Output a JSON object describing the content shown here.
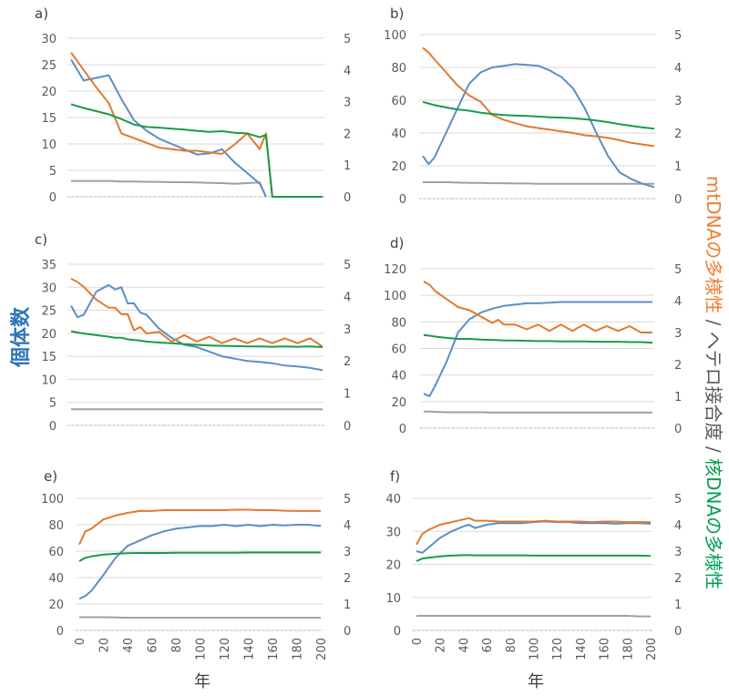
{
  "figure": {
    "left_axis_label": "個体数",
    "right_axis_label_parts": [
      {
        "text": "mtDNAの多様性",
        "color": "#ed7d31"
      },
      {
        "text": " / ヘテロ接合度 / ",
        "color": "#595959"
      },
      {
        "text": "核DNAの多様性",
        "color": "#00a050"
      }
    ],
    "x_axis_label": "年",
    "series_colors": {
      "population": "#5b8ec4",
      "mtdna": "#e07a2e",
      "heterozygosity": "#a0a0a0",
      "nuclear": "#1a9a48"
    }
  },
  "chart_data": [
    {
      "type": "line",
      "panel": "a)",
      "x": [
        0,
        10,
        20,
        30,
        40,
        50,
        60,
        70,
        80,
        90,
        100,
        110,
        120,
        130,
        140,
        150,
        155,
        160,
        170,
        180,
        190,
        200
      ],
      "xlim": [
        0,
        200
      ],
      "left_ylim": [
        0,
        30
      ],
      "left_ticks": [
        "0",
        "5",
        "10",
        "15",
        "20",
        "25",
        "30"
      ],
      "right_ylim": [
        0,
        5
      ],
      "right_ticks": [
        "0",
        "1",
        "2",
        "3",
        "4",
        "5"
      ],
      "series": [
        {
          "name": "個体数",
          "axis": "left",
          "key": "population",
          "values": [
            26,
            22,
            22.5,
            23,
            18.5,
            14.5,
            12.5,
            11,
            10,
            9,
            8,
            8.2,
            9,
            6.5,
            4.5,
            2.5,
            0,
            null,
            null,
            null,
            null,
            null
          ]
        },
        {
          "name": "mtDNAの多様性",
          "axis": "right",
          "key": "mtdna",
          "values": [
            4.55,
            4.0,
            3.45,
            2.95,
            2.0,
            1.85,
            1.7,
            1.55,
            1.5,
            1.45,
            1.45,
            1.4,
            1.35,
            1.65,
            2.0,
            1.5,
            2.0,
            0,
            0,
            0,
            0,
            0
          ]
        },
        {
          "name": "ヘテロ接合度",
          "axis": "right",
          "key": "heterozygosity",
          "values": [
            0.5,
            0.5,
            0.5,
            0.5,
            0.48,
            0.48,
            0.47,
            0.47,
            0.46,
            0.46,
            0.45,
            0.44,
            0.43,
            0.41,
            0.43,
            0.45,
            0.0,
            null,
            null,
            null,
            null,
            null
          ]
        },
        {
          "name": "核DNAの多様性",
          "axis": "right",
          "key": "nuclear",
          "values": [
            2.92,
            2.8,
            2.7,
            2.6,
            2.45,
            2.28,
            2.2,
            2.18,
            2.15,
            2.12,
            2.08,
            2.05,
            2.07,
            2.02,
            2.0,
            1.88,
            1.95,
            0,
            0,
            0,
            0,
            0
          ]
        }
      ]
    },
    {
      "type": "line",
      "panel": "b)",
      "x": [
        0,
        5,
        10,
        20,
        30,
        40,
        50,
        60,
        70,
        80,
        90,
        100,
        110,
        120,
        130,
        140,
        150,
        160,
        170,
        180,
        190,
        200
      ],
      "xlim": [
        0,
        200
      ],
      "left_ylim": [
        0,
        100
      ],
      "left_ticks": [
        "0",
        "20",
        "40",
        "60",
        "80",
        "100"
      ],
      "right_ylim": [
        0,
        5
      ],
      "right_ticks": [
        "0",
        "1",
        "2",
        "3",
        "4",
        "5"
      ],
      "series": [
        {
          "name": "個体数",
          "axis": "left",
          "key": "population",
          "values": [
            26,
            21,
            25,
            40,
            55,
            70,
            77,
            80,
            81,
            82,
            81.5,
            81,
            78,
            74,
            67,
            55,
            40,
            26,
            16,
            12,
            9,
            7
          ]
        },
        {
          "name": "mtDNAの多様性",
          "axis": "right",
          "key": "mtdna",
          "values": [
            4.6,
            4.45,
            4.25,
            3.85,
            3.45,
            3.15,
            2.95,
            2.55,
            2.4,
            2.3,
            2.2,
            2.15,
            2.1,
            2.05,
            2.0,
            1.93,
            1.9,
            1.85,
            1.78,
            1.7,
            1.65,
            1.6
          ]
        },
        {
          "name": "ヘテロ接合度",
          "axis": "right",
          "key": "heterozygosity",
          "values": [
            0.5,
            0.5,
            0.5,
            0.5,
            0.49,
            0.48,
            0.48,
            0.47,
            0.47,
            0.46,
            0.46,
            0.45,
            0.45,
            0.45,
            0.45,
            0.45,
            0.45,
            0.45,
            0.45,
            0.45,
            0.45,
            0.45
          ]
        },
        {
          "name": "核DNAの多様性",
          "axis": "right",
          "key": "nuclear",
          "values": [
            2.95,
            2.9,
            2.85,
            2.78,
            2.72,
            2.68,
            2.62,
            2.58,
            2.55,
            2.53,
            2.52,
            2.5,
            2.48,
            2.47,
            2.45,
            2.42,
            2.38,
            2.33,
            2.27,
            2.22,
            2.17,
            2.13
          ]
        }
      ]
    },
    {
      "type": "line",
      "panel": "c)",
      "x": [
        0,
        5,
        10,
        20,
        30,
        35,
        40,
        45,
        50,
        55,
        60,
        70,
        80,
        90,
        100,
        110,
        120,
        130,
        140,
        150,
        160,
        170,
        180,
        190,
        200
      ],
      "xlim": [
        0,
        200
      ],
      "left_ylim": [
        0,
        35
      ],
      "left_ticks": [
        "0",
        "5",
        "10",
        "15",
        "20",
        "25",
        "30",
        "35"
      ],
      "right_ylim": [
        0,
        5
      ],
      "right_ticks": [
        "0",
        "1",
        "2",
        "3",
        "4",
        "5"
      ],
      "series": [
        {
          "name": "個体数",
          "axis": "left",
          "key": "population",
          "values": [
            26,
            23.5,
            24,
            29,
            30.5,
            29.5,
            30,
            26.5,
            26.5,
            24.5,
            24,
            21,
            19,
            17.5,
            17,
            16,
            15,
            14.5,
            14,
            13.8,
            13.5,
            13,
            12.8,
            12.5,
            12
          ]
        },
        {
          "name": "mtDNAの多様性",
          "axis": "right",
          "key": "mtdna",
          "values": [
            4.55,
            4.45,
            4.3,
            3.9,
            3.65,
            3.65,
            3.45,
            3.45,
            2.95,
            3.05,
            2.85,
            2.9,
            2.6,
            2.8,
            2.6,
            2.75,
            2.55,
            2.7,
            2.55,
            2.7,
            2.55,
            2.7,
            2.55,
            2.7,
            2.45
          ]
        },
        {
          "name": "ヘテロ接合度",
          "axis": "right",
          "key": "heterozygosity",
          "values": [
            0.5,
            0.5,
            0.5,
            0.5,
            0.5,
            0.5,
            0.5,
            0.5,
            0.5,
            0.5,
            0.5,
            0.5,
            0.5,
            0.5,
            0.5,
            0.5,
            0.5,
            0.5,
            0.5,
            0.5,
            0.5,
            0.5,
            0.5,
            0.5,
            0.5
          ]
        },
        {
          "name": "核DNAの多様性",
          "axis": "right",
          "key": "nuclear",
          "values": [
            2.92,
            2.88,
            2.85,
            2.8,
            2.75,
            2.72,
            2.72,
            2.67,
            2.65,
            2.63,
            2.6,
            2.57,
            2.55,
            2.52,
            2.5,
            2.48,
            2.47,
            2.46,
            2.45,
            2.45,
            2.44,
            2.45,
            2.44,
            2.45,
            2.43
          ]
        }
      ]
    },
    {
      "type": "line",
      "panel": "d)",
      "x": [
        0,
        5,
        10,
        20,
        30,
        40,
        50,
        60,
        65,
        70,
        80,
        90,
        100,
        110,
        120,
        130,
        140,
        150,
        160,
        170,
        180,
        190,
        200
      ],
      "xlim": [
        0,
        200
      ],
      "left_ylim": [
        0,
        120
      ],
      "left_ticks": [
        "0",
        "20",
        "40",
        "60",
        "80",
        "100",
        "120"
      ],
      "right_ylim": [
        0,
        5
      ],
      "right_ticks": [
        "0",
        "1",
        "2",
        "3",
        "4",
        "5"
      ],
      "series": [
        {
          "name": "個体数",
          "axis": "left",
          "key": "population",
          "values": [
            26,
            24,
            32,
            50,
            72,
            82,
            87,
            90,
            91,
            92,
            93,
            94,
            94,
            94.5,
            95,
            95,
            95,
            95,
            95,
            95,
            95,
            95,
            95
          ]
        },
        {
          "name": "mtDNAの多様性",
          "axis": "right",
          "key": "mtdna",
          "values": [
            4.6,
            4.5,
            4.3,
            4.05,
            3.8,
            3.7,
            3.5,
            3.3,
            3.4,
            3.25,
            3.25,
            3.1,
            3.25,
            3.05,
            3.25,
            3.05,
            3.25,
            3.05,
            3.2,
            3.05,
            3.2,
            3.0,
            3.0
          ]
        },
        {
          "name": "ヘテロ接合度",
          "axis": "right",
          "key": "heterozygosity",
          "values": [
            0.52,
            0.52,
            0.51,
            0.5,
            0.5,
            0.5,
            0.5,
            0.49,
            0.49,
            0.49,
            0.49,
            0.49,
            0.49,
            0.49,
            0.49,
            0.49,
            0.49,
            0.49,
            0.49,
            0.49,
            0.49,
            0.49,
            0.49
          ]
        },
        {
          "name": "核DNAの多様性",
          "axis": "right",
          "key": "nuclear",
          "values": [
            2.92,
            2.9,
            2.87,
            2.83,
            2.8,
            2.8,
            2.78,
            2.77,
            2.76,
            2.75,
            2.75,
            2.74,
            2.73,
            2.73,
            2.72,
            2.72,
            2.72,
            2.71,
            2.71,
            2.71,
            2.7,
            2.7,
            2.68
          ]
        }
      ]
    },
    {
      "type": "line",
      "panel": "e)",
      "x": [
        0,
        5,
        10,
        20,
        30,
        40,
        50,
        60,
        70,
        80,
        90,
        100,
        110,
        120,
        130,
        140,
        150,
        160,
        170,
        180,
        190,
        200
      ],
      "xlim": [
        0,
        200
      ],
      "left_ylim": [
        0,
        100
      ],
      "left_ticks": [
        "0",
        "20",
        "40",
        "60",
        "80",
        "100"
      ],
      "right_ylim": [
        0,
        5
      ],
      "right_ticks": [
        "0",
        "1",
        "2",
        "3",
        "4",
        "5"
      ],
      "series": [
        {
          "name": "個体数",
          "axis": "left",
          "key": "population",
          "values": [
            24,
            26,
            30,
            42,
            55,
            64,
            68,
            72,
            75,
            77,
            78,
            79,
            79,
            80,
            79,
            80,
            79,
            80,
            79.5,
            80,
            80,
            79
          ]
        },
        {
          "name": "mtDNAの多様性",
          "axis": "right",
          "key": "mtdna",
          "values": [
            3.25,
            3.75,
            3.85,
            4.2,
            4.35,
            4.45,
            4.52,
            4.52,
            4.55,
            4.55,
            4.55,
            4.55,
            4.55,
            4.55,
            4.57,
            4.57,
            4.55,
            4.55,
            4.53,
            4.52,
            4.52,
            4.52
          ]
        },
        {
          "name": "ヘテロ接合度",
          "axis": "right",
          "key": "heterozygosity",
          "values": [
            0.5,
            0.5,
            0.5,
            0.5,
            0.49,
            0.48,
            0.48,
            0.48,
            0.48,
            0.48,
            0.48,
            0.48,
            0.48,
            0.48,
            0.48,
            0.48,
            0.48,
            0.48,
            0.48,
            0.48,
            0.48,
            0.48
          ]
        },
        {
          "name": "核DNAの多様性",
          "axis": "right",
          "key": "nuclear",
          "values": [
            2.62,
            2.75,
            2.8,
            2.87,
            2.9,
            2.92,
            2.93,
            2.93,
            2.93,
            2.94,
            2.94,
            2.94,
            2.94,
            2.94,
            2.94,
            2.95,
            2.95,
            2.95,
            2.95,
            2.95,
            2.95,
            2.95
          ]
        }
      ]
    },
    {
      "type": "line",
      "panel": "f)",
      "x": [
        0,
        5,
        10,
        20,
        30,
        40,
        45,
        50,
        60,
        70,
        80,
        90,
        100,
        110,
        120,
        130,
        140,
        150,
        160,
        170,
        180,
        190,
        200
      ],
      "xlim": [
        0,
        200
      ],
      "left_ylim": [
        0,
        40
      ],
      "left_ticks": [
        "0",
        "10",
        "20",
        "30",
        "40"
      ],
      "right_ylim": [
        0,
        5
      ],
      "right_ticks": [
        "0",
        "1",
        "2",
        "3",
        "4",
        "5"
      ],
      "series": [
        {
          "name": "個体数",
          "axis": "left",
          "key": "population",
          "values": [
            24,
            23.5,
            25,
            28,
            30,
            31.5,
            32,
            31,
            32,
            32.5,
            32.5,
            32.5,
            32.8,
            33,
            32.8,
            32.8,
            32.5,
            32.5,
            32.5,
            32.3,
            32.5,
            32.5,
            32.3
          ]
        },
        {
          "name": "mtDNAの多様性",
          "axis": "right",
          "key": "mtdna",
          "values": [
            3.25,
            3.65,
            3.8,
            4.0,
            4.1,
            4.2,
            4.25,
            4.15,
            4.15,
            4.12,
            4.12,
            4.12,
            4.12,
            4.15,
            4.12,
            4.12,
            4.12,
            4.1,
            4.12,
            4.12,
            4.1,
            4.1,
            4.1
          ]
        },
        {
          "name": "ヘテロ接合度",
          "axis": "right",
          "key": "heterozygosity",
          "values": [
            0.55,
            0.55,
            0.55,
            0.55,
            0.55,
            0.55,
            0.55,
            0.55,
            0.55,
            0.55,
            0.55,
            0.55,
            0.55,
            0.55,
            0.55,
            0.55,
            0.55,
            0.55,
            0.55,
            0.55,
            0.55,
            0.53,
            0.53
          ]
        },
        {
          "name": "核DNAの多様性",
          "axis": "right",
          "key": "nuclear",
          "values": [
            2.62,
            2.72,
            2.75,
            2.8,
            2.83,
            2.85,
            2.85,
            2.84,
            2.84,
            2.84,
            2.84,
            2.84,
            2.83,
            2.83,
            2.83,
            2.83,
            2.83,
            2.83,
            2.83,
            2.83,
            2.83,
            2.83,
            2.82
          ]
        }
      ]
    }
  ],
  "x_ticks": [
    "0",
    "20",
    "40",
    "60",
    "80",
    "100",
    "120",
    "140",
    "160",
    "180",
    "200"
  ]
}
